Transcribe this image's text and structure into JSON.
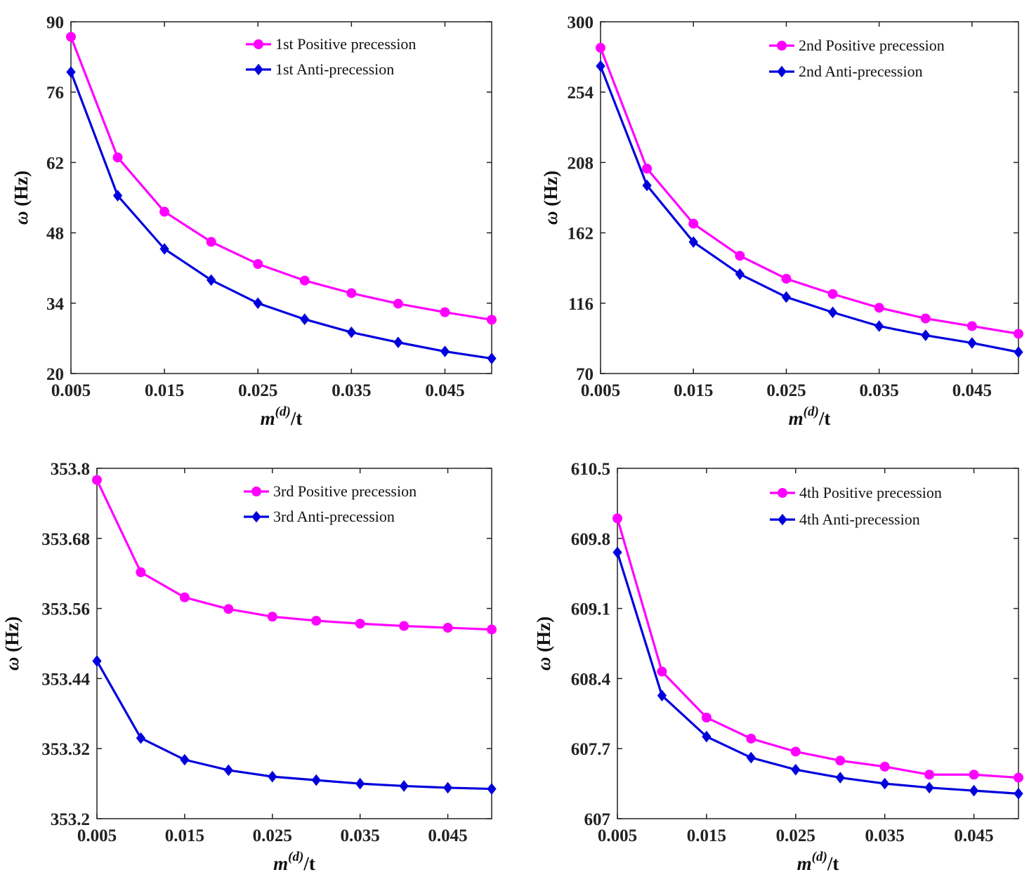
{
  "chart_data": [
    {
      "type": "line",
      "x": [
        0.005,
        0.01,
        0.015,
        0.02,
        0.025,
        0.03,
        0.035,
        0.04,
        0.045,
        0.05
      ],
      "xticks": [
        0.005,
        0.015,
        0.025,
        0.035,
        0.045
      ],
      "xtick_labels": [
        "0.005",
        "0.015",
        "0.025",
        "0.035",
        "0.045"
      ],
      "xlim": [
        0.005,
        0.05
      ],
      "ylim": [
        20,
        90
      ],
      "yticks": [
        20,
        34,
        48,
        62,
        76,
        90
      ],
      "ytick_labels": [
        "20",
        "34",
        "48",
        "62",
        "76",
        "90"
      ],
      "xlabel": {
        "base": "m",
        "sup": "(d)",
        "rest": "/t"
      },
      "ylabel": {
        "symbol": "ω",
        "unit": "(Hz)"
      },
      "legend_position": "top-right",
      "series": [
        {
          "name": "1st Positive precession",
          "color": "#ff00ff",
          "marker": "circle",
          "values": [
            87.0,
            63.0,
            52.2,
            46.2,
            41.8,
            38.5,
            36.0,
            33.9,
            32.2,
            30.7
          ]
        },
        {
          "name": "1st Anti-precession",
          "color": "#0000dd",
          "marker": "diamond",
          "values": [
            80.0,
            55.4,
            44.8,
            38.6,
            34.0,
            30.8,
            28.2,
            26.2,
            24.4,
            23.0
          ]
        }
      ]
    },
    {
      "type": "line",
      "x": [
        0.005,
        0.01,
        0.015,
        0.02,
        0.025,
        0.03,
        0.035,
        0.04,
        0.045,
        0.05
      ],
      "xticks": [
        0.005,
        0.015,
        0.025,
        0.035,
        0.045
      ],
      "xtick_labels": [
        "0.005",
        "0.015",
        "0.025",
        "0.035",
        "0.045"
      ],
      "xlim": [
        0.005,
        0.05
      ],
      "ylim": [
        70,
        300
      ],
      "yticks": [
        70,
        116,
        162,
        208,
        254,
        300
      ],
      "ytick_labels": [
        "70",
        "116",
        "162",
        "208",
        "254",
        "300"
      ],
      "xlabel": {
        "base": "m",
        "sup": "(d)",
        "rest": "/t"
      },
      "ylabel": {
        "symbol": "ω",
        "unit": "(Hz)"
      },
      "legend_position": "top-right",
      "series": [
        {
          "name": "2nd Positive precession",
          "color": "#ff00ff",
          "marker": "circle",
          "values": [
            283,
            204,
            168,
            147,
            132,
            122,
            113,
            106,
            101,
            96
          ]
        },
        {
          "name": "2nd Anti-precession",
          "color": "#0000dd",
          "marker": "diamond",
          "values": [
            271,
            193,
            156,
            135,
            120,
            110,
            101,
            95,
            90,
            84
          ]
        }
      ]
    },
    {
      "type": "line",
      "x": [
        0.005,
        0.01,
        0.015,
        0.02,
        0.025,
        0.03,
        0.035,
        0.04,
        0.045,
        0.05
      ],
      "xticks": [
        0.005,
        0.015,
        0.025,
        0.035,
        0.045
      ],
      "xtick_labels": [
        "0.005",
        "0.015",
        "0.025",
        "0.035",
        "0.045"
      ],
      "xlim": [
        0.005,
        0.05
      ],
      "ylim": [
        353.2,
        353.8
      ],
      "yticks": [
        353.2,
        353.32,
        353.44,
        353.56,
        353.68,
        353.8
      ],
      "ytick_labels": [
        "353.2",
        "353.32",
        "353.44",
        "353.56",
        "353.68",
        "353.8"
      ],
      "xlabel": {
        "base": "m",
        "sup": "(d)",
        "rest": "/t"
      },
      "ylabel": {
        "symbol": "ω",
        "unit": "(Hz)"
      },
      "legend_position": "top-right",
      "series": [
        {
          "name": "3rd Positive precession",
          "color": "#ff00ff",
          "marker": "circle",
          "values": [
            353.78,
            353.622,
            353.579,
            353.559,
            353.546,
            353.539,
            353.534,
            353.53,
            353.527,
            353.524
          ]
        },
        {
          "name": "3rd Anti-precession",
          "color": "#0000dd",
          "marker": "diamond",
          "values": [
            353.47,
            353.338,
            353.301,
            353.283,
            353.272,
            353.266,
            353.26,
            353.256,
            353.253,
            353.251
          ]
        }
      ]
    },
    {
      "type": "line",
      "x": [
        0.005,
        0.01,
        0.015,
        0.02,
        0.025,
        0.03,
        0.035,
        0.04,
        0.045,
        0.05
      ],
      "xticks": [
        0.005,
        0.015,
        0.025,
        0.035,
        0.045
      ],
      "xtick_labels": [
        "0.005",
        "0.015",
        "0.025",
        "0.035",
        "0.045"
      ],
      "xlim": [
        0.005,
        0.05
      ],
      "ylim": [
        607,
        610.5
      ],
      "yticks": [
        607,
        607.7,
        608.4,
        609.1,
        609.8,
        610.5
      ],
      "ytick_labels": [
        "607",
        "607.7",
        "608.4",
        "609.1",
        "609.8",
        "610.5"
      ],
      "xlabel": {
        "base": "m",
        "sup": "(d)",
        "rest": "/t"
      },
      "ylabel": {
        "symbol": "ω",
        "unit": "(Hz)"
      },
      "legend_position": "top-right",
      "series": [
        {
          "name": "4th Positive precession",
          "color": "#ff00ff",
          "marker": "circle",
          "values": [
            610.0,
            608.47,
            608.01,
            607.8,
            607.67,
            607.58,
            607.52,
            607.44,
            607.44,
            607.41
          ]
        },
        {
          "name": "4th Anti-precession",
          "color": "#0000dd",
          "marker": "diamond",
          "values": [
            609.66,
            608.23,
            607.82,
            607.61,
            607.49,
            607.41,
            607.35,
            607.31,
            607.28,
            607.25
          ]
        }
      ]
    }
  ]
}
